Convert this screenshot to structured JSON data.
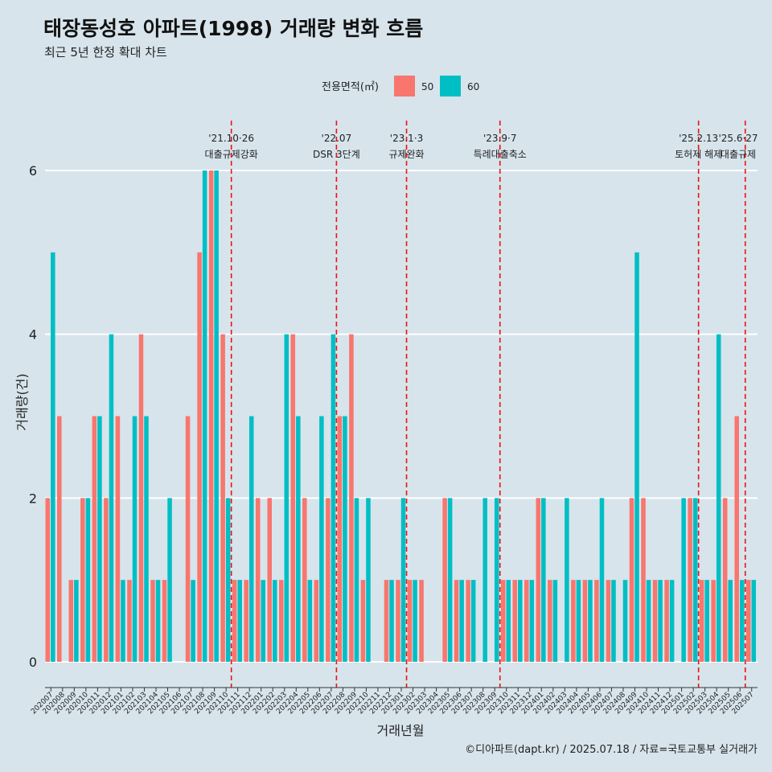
{
  "colors": {
    "s50": "#f8766d",
    "s60": "#00bfc4",
    "event": "#ee1111",
    "grid": "#ffffff"
  },
  "chart_data": {
    "type": "bar",
    "title": "태장동성호 아파트(1998) 거래량 변화 흐름",
    "subtitle": "최근 5년 한정 확대 차트",
    "xlabel": "거래년월",
    "ylabel": "거래량(건)",
    "caption": "©디아파트(dapt.kr) / 2025.07.18 / 자료=국토교통부 실거래가",
    "legend_title": "전용면적(㎡)",
    "legend_position": "top",
    "ylim": [
      0,
      6
    ],
    "yticks": [
      0,
      2,
      4,
      6
    ],
    "categories": [
      "202007",
      "202008",
      "202009",
      "202010",
      "202011",
      "202012",
      "202101",
      "202102",
      "202103",
      "202104",
      "202105",
      "202106",
      "202107",
      "202108",
      "202109",
      "202110",
      "202111",
      "202112",
      "202201",
      "202202",
      "202203",
      "202204",
      "202205",
      "202206",
      "202207",
      "202208",
      "202209",
      "202210",
      "202211",
      "202212",
      "202301",
      "202302",
      "202303",
      "202304",
      "202305",
      "202306",
      "202307",
      "202308",
      "202309",
      "202310",
      "202311",
      "202312",
      "202401",
      "202402",
      "202403",
      "202404",
      "202405",
      "202406",
      "202407",
      "202408",
      "202409",
      "202410",
      "202411",
      "202412",
      "202501",
      "202502",
      "202503",
      "202504",
      "202505",
      "202506",
      "202507"
    ],
    "series": [
      {
        "name": "50",
        "values": [
          2,
          3,
          1,
          2,
          3,
          2,
          3,
          1,
          4,
          1,
          1,
          0,
          3,
          5,
          6,
          4,
          1,
          1,
          2,
          2,
          1,
          4,
          2,
          1,
          2,
          3,
          4,
          1,
          0,
          1,
          1,
          1,
          1,
          0,
          2,
          1,
          1,
          0,
          0,
          1,
          1,
          1,
          2,
          1,
          0,
          1,
          1,
          1,
          1,
          0,
          2,
          2,
          1,
          1,
          0,
          2,
          1,
          1,
          2,
          3,
          1
        ]
      },
      {
        "name": "60",
        "values": [
          5,
          0,
          1,
          2,
          3,
          4,
          1,
          3,
          3,
          1,
          2,
          0,
          1,
          6,
          6,
          2,
          1,
          3,
          1,
          1,
          4,
          3,
          1,
          3,
          4,
          3,
          2,
          2,
          0,
          1,
          2,
          1,
          0,
          0,
          2,
          1,
          1,
          2,
          2,
          1,
          1,
          1,
          2,
          1,
          2,
          1,
          1,
          2,
          1,
          1,
          5,
          1,
          1,
          1,
          2,
          2,
          1,
          4,
          1,
          1,
          1
        ]
      }
    ],
    "events": [
      {
        "date": "'21.10·26",
        "label": "대출규제강화",
        "after": "202110"
      },
      {
        "date": "'22.07",
        "label": "DSR 3단계",
        "after": "202207"
      },
      {
        "date": "'23.1·3",
        "label": "규제완화",
        "after": "202301"
      },
      {
        "date": "'23.9·7",
        "label": "특례대출축소",
        "after": "202309"
      },
      {
        "date": "'25.2.13",
        "label": "토허제 해제",
        "after": "202502"
      },
      {
        "date": "'25.6·27",
        "label": "대출규제",
        "after": "202506"
      }
    ]
  }
}
